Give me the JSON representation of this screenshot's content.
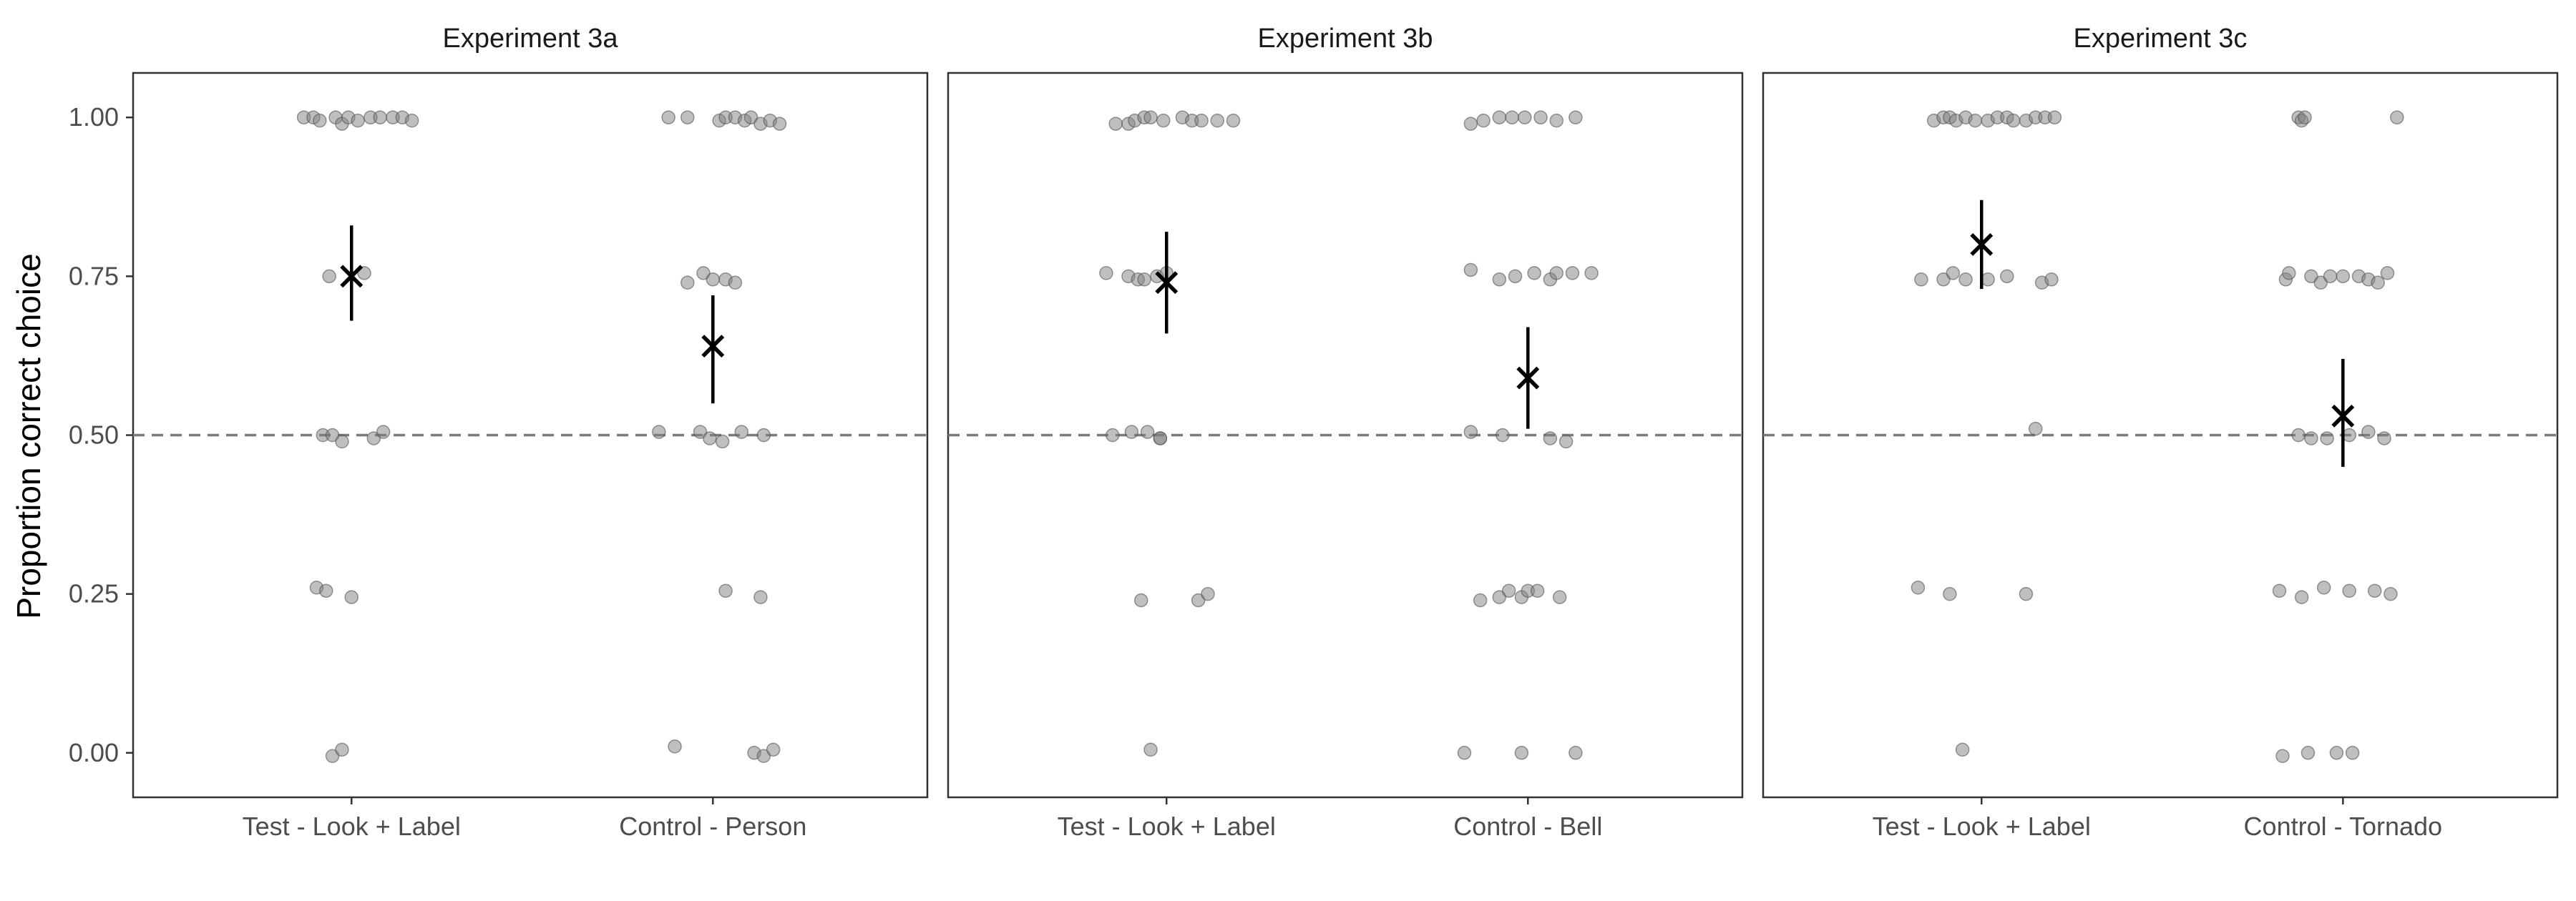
{
  "chart_data": {
    "type": "scatter",
    "ylabel": "Proportion correct choice",
    "xlabel": "",
    "ylim": [
      -0.07,
      1.07
    ],
    "yticks": [
      0.0,
      0.25,
      0.5,
      0.75,
      1.0
    ],
    "ytick_labels": [
      "0.00",
      "0.25",
      "0.50",
      "0.75",
      "1.00"
    ],
    "reference_line": {
      "y": 0.5,
      "style": "dashed"
    },
    "grid": false,
    "colors": {
      "points": "#7f7f7f",
      "summary": "#000000",
      "reference": "#7a7a7a",
      "frame": "#333333"
    },
    "panels": [
      {
        "title": "Experiment 3a",
        "categories": [
          "Test - Look + Label",
          "Control - Person"
        ],
        "points": [
          [
            [
              -0.15,
              1.0
            ],
            [
              -0.12,
              1.0
            ],
            [
              -0.1,
              0.995
            ],
            [
              -0.05,
              1.0
            ],
            [
              -0.03,
              0.99
            ],
            [
              -0.01,
              1.0
            ],
            [
              0.02,
              0.995
            ],
            [
              0.06,
              1.0
            ],
            [
              0.09,
              1.0
            ],
            [
              0.13,
              1.0
            ],
            [
              0.16,
              1.0
            ],
            [
              0.19,
              0.995
            ],
            [
              -0.07,
              0.75
            ],
            [
              0.04,
              0.755
            ],
            [
              -0.09,
              0.5
            ],
            [
              -0.06,
              0.5
            ],
            [
              -0.03,
              0.49
            ],
            [
              0.07,
              0.495
            ],
            [
              0.1,
              0.505
            ],
            [
              -0.11,
              0.26
            ],
            [
              -0.08,
              0.255
            ],
            [
              0.0,
              0.245
            ],
            [
              -0.06,
              -0.005
            ],
            [
              -0.03,
              0.005
            ]
          ],
          [
            [
              -0.14,
              1.0
            ],
            [
              -0.08,
              1.0
            ],
            [
              0.02,
              0.995
            ],
            [
              0.04,
              1.0
            ],
            [
              0.07,
              1.0
            ],
            [
              0.1,
              0.995
            ],
            [
              0.12,
              1.0
            ],
            [
              0.15,
              0.99
            ],
            [
              0.18,
              0.995
            ],
            [
              0.21,
              0.99
            ],
            [
              -0.08,
              0.74
            ],
            [
              -0.03,
              0.755
            ],
            [
              0.0,
              0.745
            ],
            [
              0.04,
              0.745
            ],
            [
              0.07,
              0.74
            ],
            [
              -0.17,
              0.505
            ],
            [
              -0.04,
              0.505
            ],
            [
              -0.01,
              0.495
            ],
            [
              0.03,
              0.49
            ],
            [
              0.09,
              0.505
            ],
            [
              0.16,
              0.5
            ],
            [
              0.04,
              0.255
            ],
            [
              0.15,
              0.245
            ],
            [
              -0.12,
              0.01
            ],
            [
              0.13,
              0.0
            ],
            [
              0.16,
              -0.005
            ],
            [
              0.19,
              0.005
            ]
          ]
        ],
        "summary": [
          {
            "mean": 0.75,
            "lower": 0.68,
            "upper": 0.83
          },
          {
            "mean": 0.64,
            "lower": 0.55,
            "upper": 0.72
          }
        ]
      },
      {
        "title": "Experiment 3b",
        "categories": [
          "Test - Look + Label",
          "Control - Bell"
        ],
        "points": [
          [
            [
              -0.16,
              0.99
            ],
            [
              -0.12,
              0.99
            ],
            [
              -0.1,
              0.995
            ],
            [
              -0.07,
              1.0
            ],
            [
              -0.05,
              1.0
            ],
            [
              -0.01,
              0.995
            ],
            [
              0.05,
              1.0
            ],
            [
              0.08,
              0.995
            ],
            [
              0.11,
              0.995
            ],
            [
              0.16,
              0.995
            ],
            [
              0.21,
              0.995
            ],
            [
              -0.19,
              0.755
            ],
            [
              -0.12,
              0.75
            ],
            [
              -0.09,
              0.745
            ],
            [
              -0.07,
              0.745
            ],
            [
              -0.03,
              0.75
            ],
            [
              0.0,
              0.755
            ],
            [
              -0.17,
              0.5
            ],
            [
              -0.11,
              0.505
            ],
            [
              -0.06,
              0.505
            ],
            [
              -0.02,
              0.495
            ],
            [
              -0.02,
              0.495
            ],
            [
              -0.08,
              0.24
            ],
            [
              0.1,
              0.24
            ],
            [
              0.13,
              0.25
            ],
            [
              -0.05,
              0.005
            ]
          ],
          [
            [
              -0.18,
              0.99
            ],
            [
              -0.14,
              0.995
            ],
            [
              -0.09,
              1.0
            ],
            [
              -0.05,
              1.0
            ],
            [
              -0.01,
              1.0
            ],
            [
              0.04,
              1.0
            ],
            [
              0.09,
              0.995
            ],
            [
              0.15,
              1.0
            ],
            [
              -0.18,
              0.76
            ],
            [
              -0.09,
              0.745
            ],
            [
              -0.04,
              0.75
            ],
            [
              0.02,
              0.755
            ],
            [
              0.07,
              0.745
            ],
            [
              0.09,
              0.755
            ],
            [
              0.14,
              0.755
            ],
            [
              0.2,
              0.755
            ],
            [
              -0.18,
              0.505
            ],
            [
              -0.08,
              0.5
            ],
            [
              0.07,
              0.495
            ],
            [
              0.12,
              0.49
            ],
            [
              -0.15,
              0.24
            ],
            [
              -0.09,
              0.245
            ],
            [
              -0.06,
              0.255
            ],
            [
              -0.02,
              0.245
            ],
            [
              0.0,
              0.255
            ],
            [
              0.03,
              0.255
            ],
            [
              0.1,
              0.245
            ],
            [
              -0.2,
              0.0
            ],
            [
              -0.02,
              0.0
            ],
            [
              0.15,
              0.0
            ]
          ]
        ],
        "summary": [
          {
            "mean": 0.74,
            "lower": 0.66,
            "upper": 0.82
          },
          {
            "mean": 0.59,
            "lower": 0.51,
            "upper": 0.67
          }
        ]
      },
      {
        "title": "Experiment 3c",
        "categories": [
          "Test - Look + Label",
          "Control - Tornado"
        ],
        "points": [
          [
            [
              -0.15,
              0.995
            ],
            [
              -0.12,
              1.0
            ],
            [
              -0.1,
              1.0
            ],
            [
              -0.08,
              0.995
            ],
            [
              -0.05,
              1.0
            ],
            [
              -0.02,
              0.995
            ],
            [
              0.02,
              0.995
            ],
            [
              0.05,
              1.0
            ],
            [
              0.08,
              1.0
            ],
            [
              0.1,
              0.995
            ],
            [
              0.14,
              0.995
            ],
            [
              0.17,
              1.0
            ],
            [
              0.2,
              1.0
            ],
            [
              0.23,
              1.0
            ],
            [
              -0.19,
              0.745
            ],
            [
              -0.12,
              0.745
            ],
            [
              -0.09,
              0.755
            ],
            [
              -0.05,
              0.745
            ],
            [
              0.02,
              0.745
            ],
            [
              0.08,
              0.75
            ],
            [
              0.19,
              0.74
            ],
            [
              0.22,
              0.745
            ],
            [
              0.17,
              0.51
            ],
            [
              -0.2,
              0.26
            ],
            [
              -0.1,
              0.25
            ],
            [
              0.14,
              0.25
            ],
            [
              -0.06,
              0.005
            ]
          ],
          [
            [
              -0.14,
              1.0
            ],
            [
              -0.13,
              0.995
            ],
            [
              -0.12,
              1.0
            ],
            [
              0.17,
              1.0
            ],
            [
              -0.18,
              0.745
            ],
            [
              -0.17,
              0.755
            ],
            [
              -0.1,
              0.75
            ],
            [
              -0.07,
              0.74
            ],
            [
              -0.04,
              0.75
            ],
            [
              0.0,
              0.75
            ],
            [
              0.05,
              0.75
            ],
            [
              0.08,
              0.745
            ],
            [
              0.11,
              0.74
            ],
            [
              0.14,
              0.755
            ],
            [
              -0.14,
              0.5
            ],
            [
              -0.1,
              0.495
            ],
            [
              -0.05,
              0.495
            ],
            [
              0.02,
              0.5
            ],
            [
              0.08,
              0.505
            ],
            [
              0.13,
              0.495
            ],
            [
              -0.2,
              0.255
            ],
            [
              -0.13,
              0.245
            ],
            [
              -0.06,
              0.26
            ],
            [
              0.02,
              0.255
            ],
            [
              0.1,
              0.255
            ],
            [
              0.15,
              0.25
            ],
            [
              -0.19,
              -0.005
            ],
            [
              -0.11,
              0.0
            ],
            [
              -0.02,
              0.0
            ],
            [
              0.03,
              0.0
            ]
          ]
        ],
        "summary": [
          {
            "mean": 0.8,
            "lower": 0.73,
            "upper": 0.87
          },
          {
            "mean": 0.53,
            "lower": 0.45,
            "upper": 0.62
          }
        ]
      }
    ]
  }
}
